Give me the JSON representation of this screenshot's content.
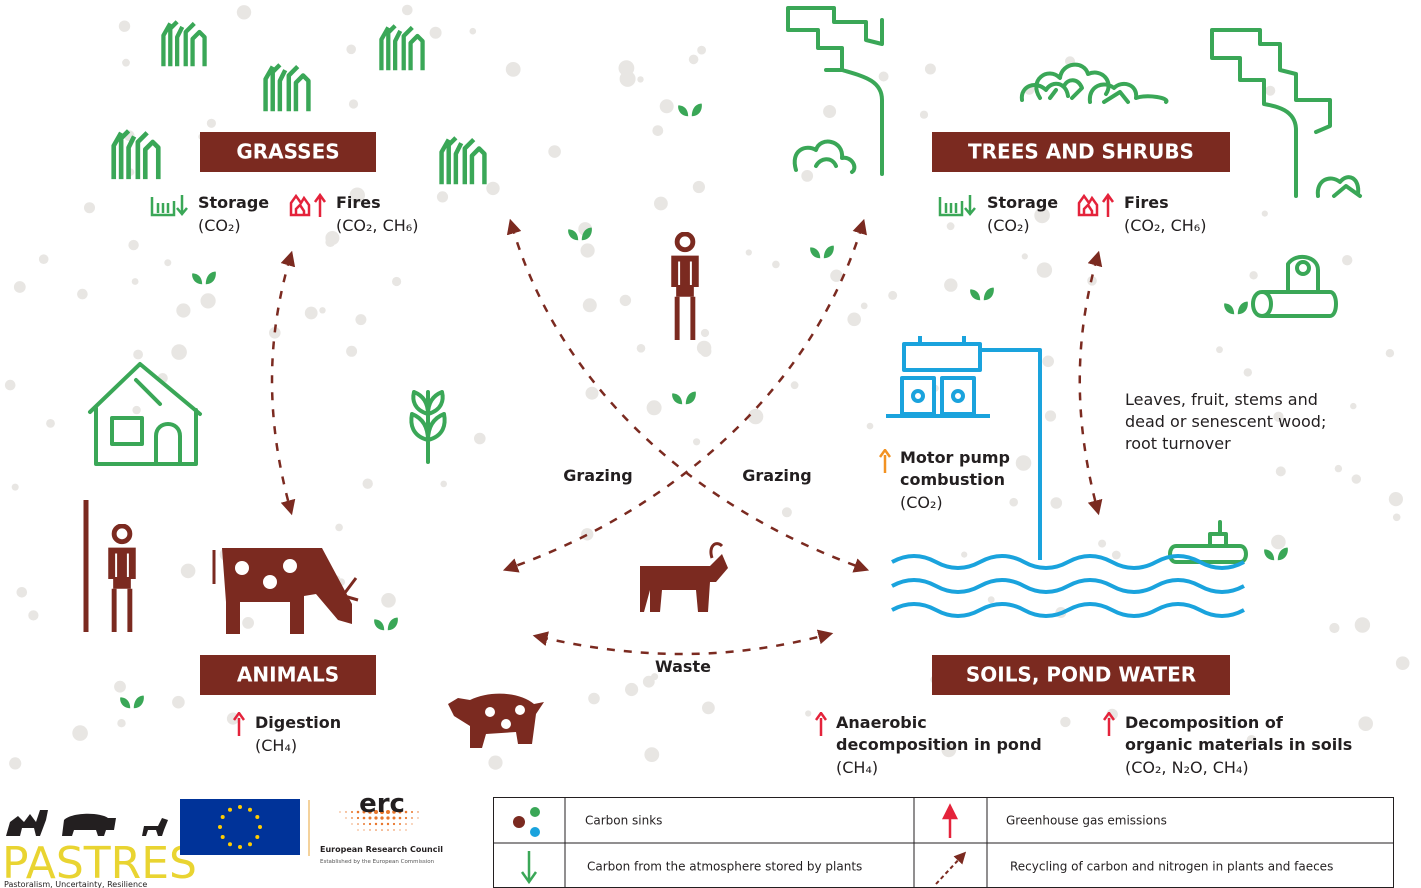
{
  "sections": {
    "grasses": {
      "title": "GRASSES",
      "storage": {
        "label": "Storage",
        "gas": "(CO₂)"
      },
      "fires": {
        "label": "Fires",
        "gas": "(CO₂, CH₆)"
      }
    },
    "trees": {
      "title": "TREES AND SHRUBS",
      "storage": {
        "label": "Storage",
        "gas": "(CO₂)"
      },
      "fires": {
        "label": "Fires",
        "gas": "(CO₂, CH₆)"
      }
    },
    "animals": {
      "title": "ANIMALS",
      "digestion": {
        "label": "Digestion",
        "gas": "(CH₄)"
      }
    },
    "soils": {
      "title": "SOILS, POND WATER",
      "anaerobic": {
        "lines": [
          "Anaerobic",
          "decomposition in pond"
        ],
        "gas": "(CH₄)"
      },
      "decomposition": {
        "lines": [
          "Decomposition of",
          "organic materials in soils"
        ],
        "gas": "(CO₂, N₂O, CH₄)"
      }
    }
  },
  "flows": {
    "grazing_left": "Grazing",
    "grazing_right": "Grazing",
    "waste": "Waste",
    "litter": [
      "Leaves, fruit, stems and",
      "dead or senescent wood;",
      "root turnover"
    ],
    "pump": {
      "lines": [
        "Motor pump",
        "combustion"
      ],
      "gas": "(CO₂)"
    }
  },
  "legend": [
    {
      "label": "Carbon sinks"
    },
    {
      "label": "Greenhouse gas emissions"
    },
    {
      "label": "Carbon from the atmosphere stored by plants"
    },
    {
      "label": "Recycling of carbon and nitrogen in plants and faeces"
    }
  ],
  "logos": {
    "pastres": "PASTRES",
    "pastres_tagline": "Pastoralism, Uncertainty, Resilience",
    "erc": "erc",
    "erc_name": "European Research Council",
    "erc_sub": "Established by the European Commission"
  }
}
